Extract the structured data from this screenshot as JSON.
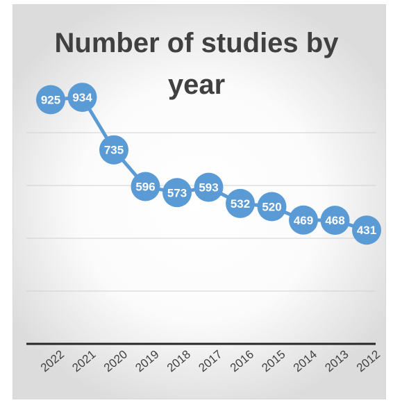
{
  "chart_data": {
    "type": "line",
    "title_line1": "Number of studies by",
    "title_line2": "year",
    "categories": [
      "2022",
      "2021",
      "2020",
      "2019",
      "2018",
      "2017",
      "2016",
      "2015",
      "2014",
      "2013",
      "2012"
    ],
    "series": [
      {
        "values": [
          925,
          934,
          735,
          596,
          573,
          593,
          532,
          520,
          469,
          468,
          431
        ]
      }
    ],
    "ylim": [
      0,
      1000
    ],
    "grid": true,
    "data_labels": true,
    "line_color": "#5b9bd5",
    "marker_color": "#5b9bd5",
    "label_color": "#ffffff"
  }
}
